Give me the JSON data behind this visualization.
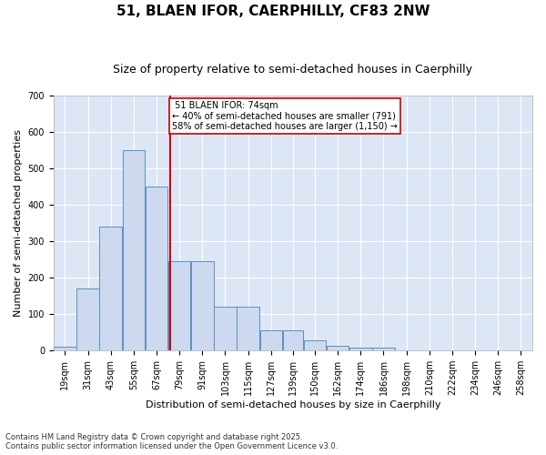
{
  "title": "51, BLAEN IFOR, CAERPHILLY, CF83 2NW",
  "subtitle": "Size of property relative to semi-detached houses in Caerphilly",
  "xlabel": "Distribution of semi-detached houses by size in Caerphilly",
  "ylabel": "Number of semi-detached properties",
  "property_size": 74,
  "property_label": "51 BLAEN IFOR: 74sqm",
  "pct_smaller": 40,
  "count_smaller": 791,
  "pct_larger": 58,
  "count_larger": 1150,
  "bin_labels": [
    "19sqm",
    "31sqm",
    "43sqm",
    "55sqm",
    "67sqm",
    "79sqm",
    "91sqm",
    "103sqm",
    "115sqm",
    "127sqm",
    "139sqm",
    "150sqm",
    "162sqm",
    "174sqm",
    "186sqm",
    "198sqm",
    "210sqm",
    "222sqm",
    "234sqm",
    "246sqm",
    "258sqm"
  ],
  "bin_edges": [
    13,
    25,
    37,
    49,
    61,
    73,
    85,
    97,
    109,
    121,
    133,
    144,
    156,
    168,
    180,
    192,
    204,
    216,
    228,
    240,
    252,
    264
  ],
  "bar_values": [
    10,
    170,
    340,
    550,
    450,
    245,
    245,
    120,
    120,
    55,
    55,
    28,
    13,
    8,
    8,
    0,
    0,
    0,
    0,
    0,
    0
  ],
  "bar_color": "#ccd9ee",
  "bar_edge_color": "#5b8fc7",
  "vline_color": "#cc0000",
  "annotation_box_edge_color": "#cc0000",
  "background_color": "#dce6f5",
  "ylim": [
    0,
    700
  ],
  "yticks": [
    0,
    100,
    200,
    300,
    400,
    500,
    600,
    700
  ],
  "footnote": "Contains HM Land Registry data © Crown copyright and database right 2025.\nContains public sector information licensed under the Open Government Licence v3.0.",
  "title_fontsize": 11,
  "subtitle_fontsize": 9,
  "axis_label_fontsize": 8,
  "tick_fontsize": 7,
  "footnote_fontsize": 6
}
